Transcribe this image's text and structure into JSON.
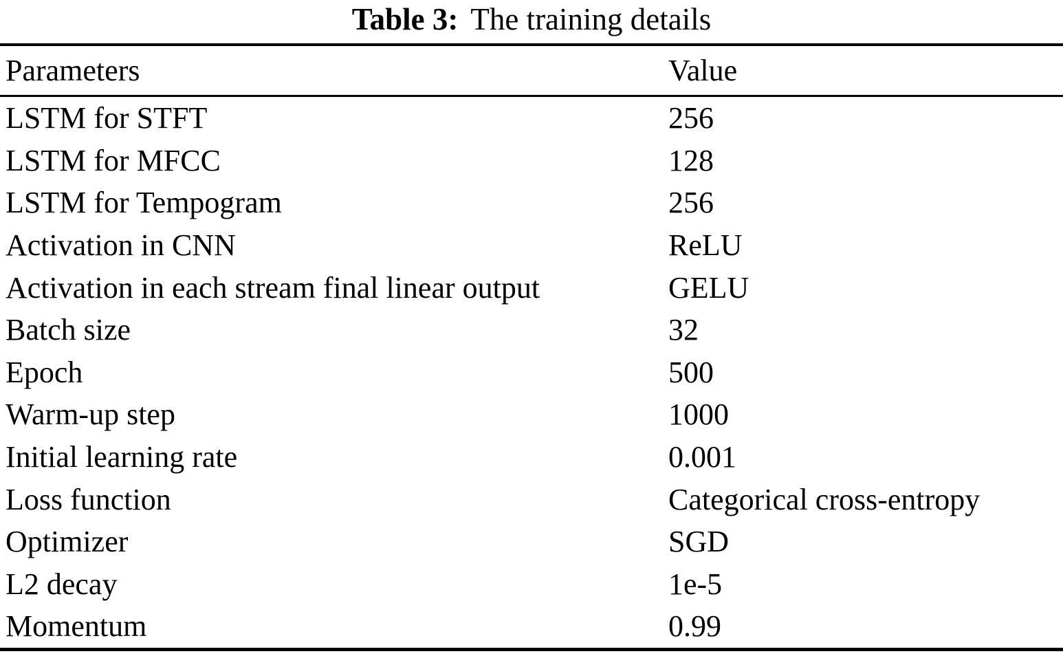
{
  "caption": {
    "label": "Table 3:",
    "text": "The training details"
  },
  "table": {
    "columns": [
      "Parameters",
      "Value"
    ],
    "rows": [
      {
        "parameter": "LSTM for STFT",
        "value": "256"
      },
      {
        "parameter": "LSTM for MFCC",
        "value": "128"
      },
      {
        "parameter": "LSTM for Tempogram",
        "value": "256"
      },
      {
        "parameter": "Activation in CNN",
        "value": "ReLU"
      },
      {
        "parameter": "Activation in each stream final linear output",
        "value": "GELU"
      },
      {
        "parameter": "Batch size",
        "value": "32"
      },
      {
        "parameter": "Epoch",
        "value": "500"
      },
      {
        "parameter": "Warm-up step",
        "value": "1000"
      },
      {
        "parameter": "Initial learning rate",
        "value": "0.001"
      },
      {
        "parameter": "Loss function",
        "value": "Categorical cross-entropy"
      },
      {
        "parameter": "Optimizer",
        "value": "SGD"
      },
      {
        "parameter": "L2 decay",
        "value": "1e-5"
      },
      {
        "parameter": "Momentum",
        "value": "0.99"
      }
    ]
  },
  "colors": {
    "text": "#000000",
    "background": "#ffffff",
    "rule": "#000000"
  }
}
